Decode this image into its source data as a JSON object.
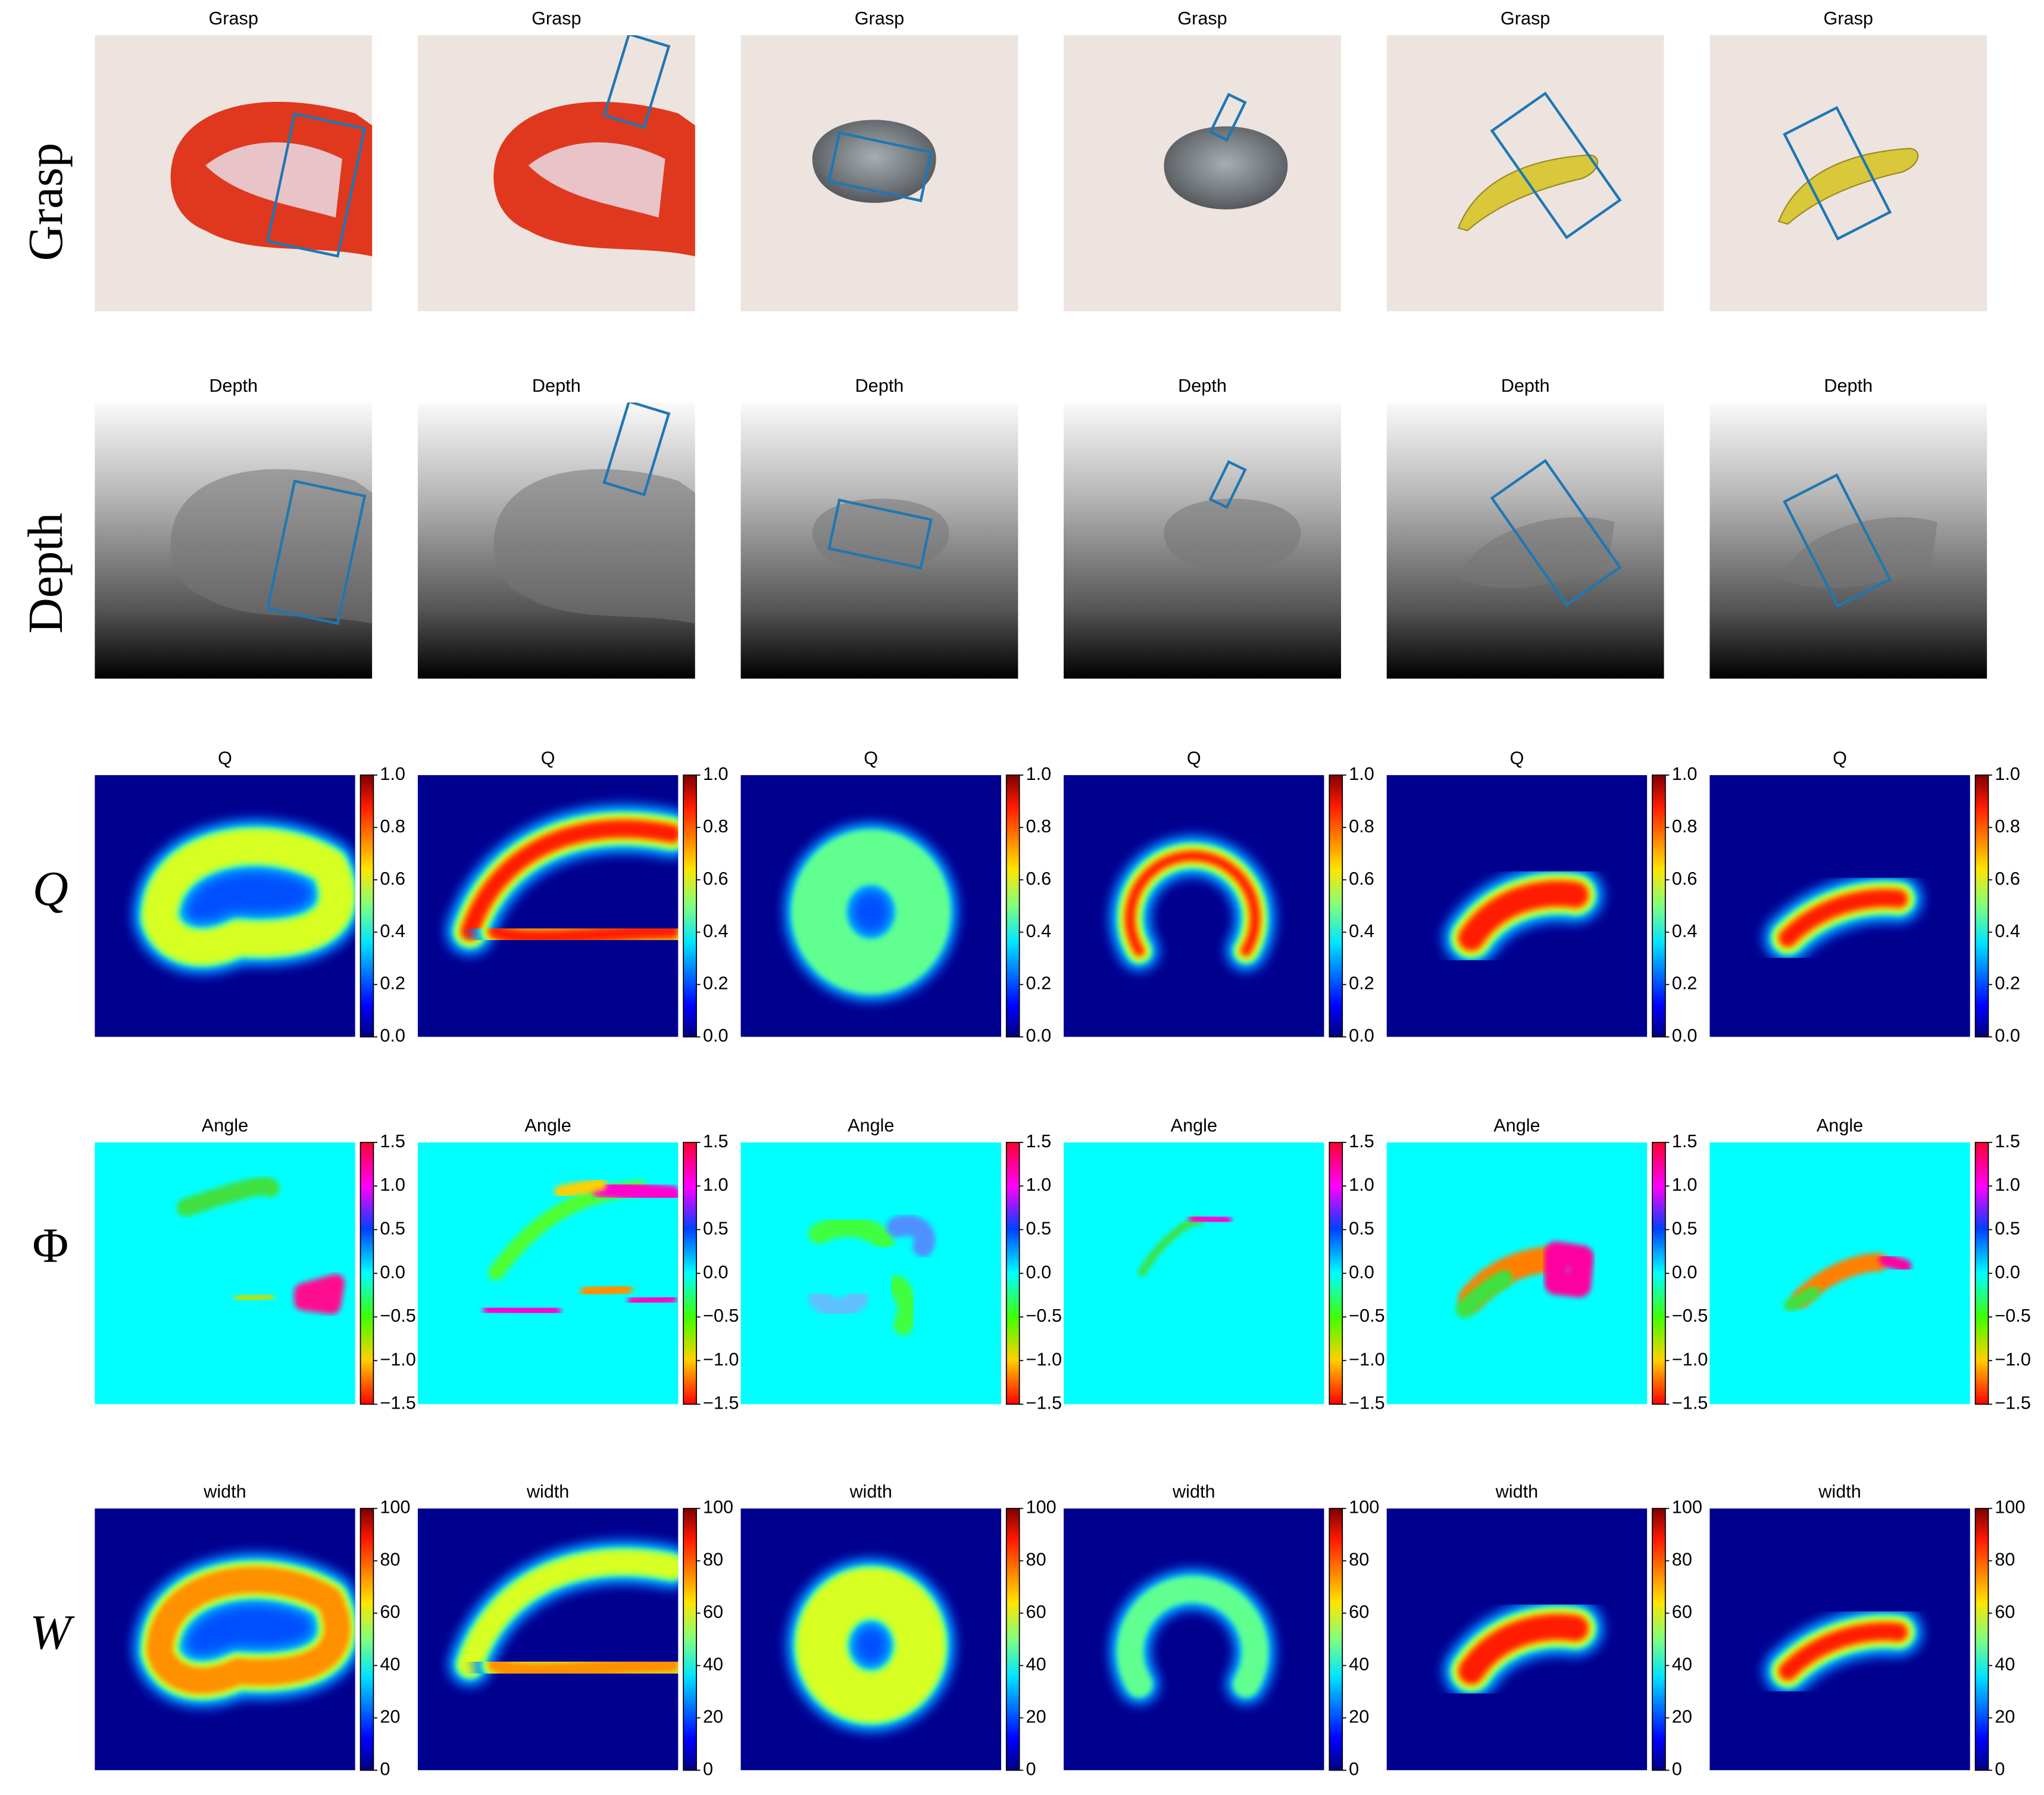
{
  "rows": [
    {
      "label": "Grasp",
      "kind": "photo",
      "titles": [
        "Grasp",
        "Grasp",
        "Grasp",
        "Grasp",
        "Grasp",
        "Grasp"
      ]
    },
    {
      "label": "Depth",
      "kind": "depth",
      "titles": [
        "Depth",
        "Depth",
        "Depth",
        "Depth",
        "Depth",
        "Depth"
      ]
    },
    {
      "label": "Q",
      "kind": "heat",
      "colormap": "jet",
      "titles": [
        "Q",
        "Q",
        "Q",
        "Q",
        "Q",
        "Q"
      ],
      "lim": [
        0,
        1
      ],
      "ticks": [
        {
          "value": 0,
          "label": "0.0"
        },
        0.2,
        0.4,
        0.6,
        0.8,
        {
          "value": 1,
          "label": "1.0"
        }
      ]
    },
    {
      "label": "Φ",
      "kind": "angle",
      "colormap": "hsv",
      "titles": [
        "Angle",
        "Angle",
        "Angle",
        "Angle",
        "Angle",
        "Angle"
      ],
      "lim": [
        -1.5,
        1.5
      ],
      "ticks": [
        {
          "value": -1.5,
          "label": "−1.5"
        },
        {
          "value": -1,
          "label": "−1.0"
        },
        {
          "value": -0.5,
          "label": "−0.5"
        },
        {
          "value": 0,
          "label": "0.0"
        },
        0.5,
        {
          "value": 1,
          "label": "1.0"
        },
        1.5
      ]
    },
    {
      "label": "W",
      "kind": "heat",
      "colormap": "jet",
      "titles": [
        "width",
        "width",
        "width",
        "width",
        "width",
        "width"
      ],
      "lim": [
        0,
        100
      ],
      "ticks": [
        0,
        20,
        40,
        60,
        80,
        100
      ]
    }
  ]
}
